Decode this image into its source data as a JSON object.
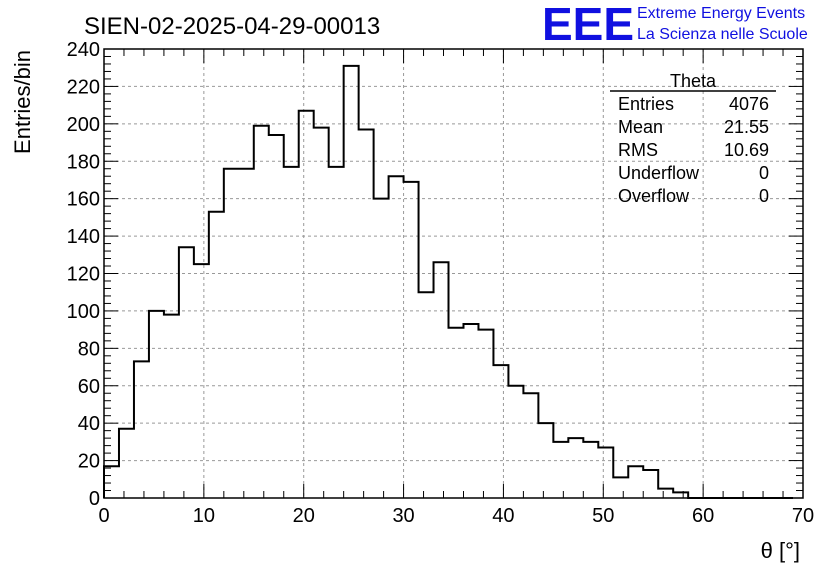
{
  "chart_data": {
    "type": "bar",
    "title": "SIEN-02-2025-04-29-00013",
    "xlabel": "θ [°]",
    "ylabel": "Entries/bin",
    "xlim": [
      0,
      70
    ],
    "ylim": [
      0,
      240
    ],
    "bin_width": 1.5,
    "x_ticks": [
      "0",
      "10",
      "20",
      "30",
      "40",
      "50",
      "60",
      "70"
    ],
    "y_ticks": [
      "0",
      "20",
      "40",
      "60",
      "80",
      "100",
      "120",
      "140",
      "160",
      "180",
      "200",
      "220",
      "240"
    ],
    "grid": true,
    "values": [
      17,
      37,
      73,
      100,
      98,
      134,
      125,
      153,
      176,
      176,
      199,
      194,
      177,
      207,
      198,
      177,
      231,
      197,
      160,
      172,
      169,
      110,
      126,
      91,
      93,
      90,
      71,
      60,
      56,
      40,
      30,
      32,
      30,
      27,
      11,
      17,
      15,
      5,
      3,
      0,
      0,
      0,
      0,
      0,
      0,
      0
    ]
  },
  "stats_box": {
    "name": "Theta",
    "rows": [
      {
        "label": "Entries",
        "value": "4076"
      },
      {
        "label": "Mean",
        "value": "21.55"
      },
      {
        "label": "RMS",
        "value": "10.69"
      },
      {
        "label": "Underflow",
        "value": "0"
      },
      {
        "label": "Overflow",
        "value": "0"
      }
    ]
  },
  "logo": {
    "mark": "EEE",
    "line1": "Extreme Energy Events",
    "line2": "La Scienza nelle Scuole",
    "color": "#1010e0"
  }
}
